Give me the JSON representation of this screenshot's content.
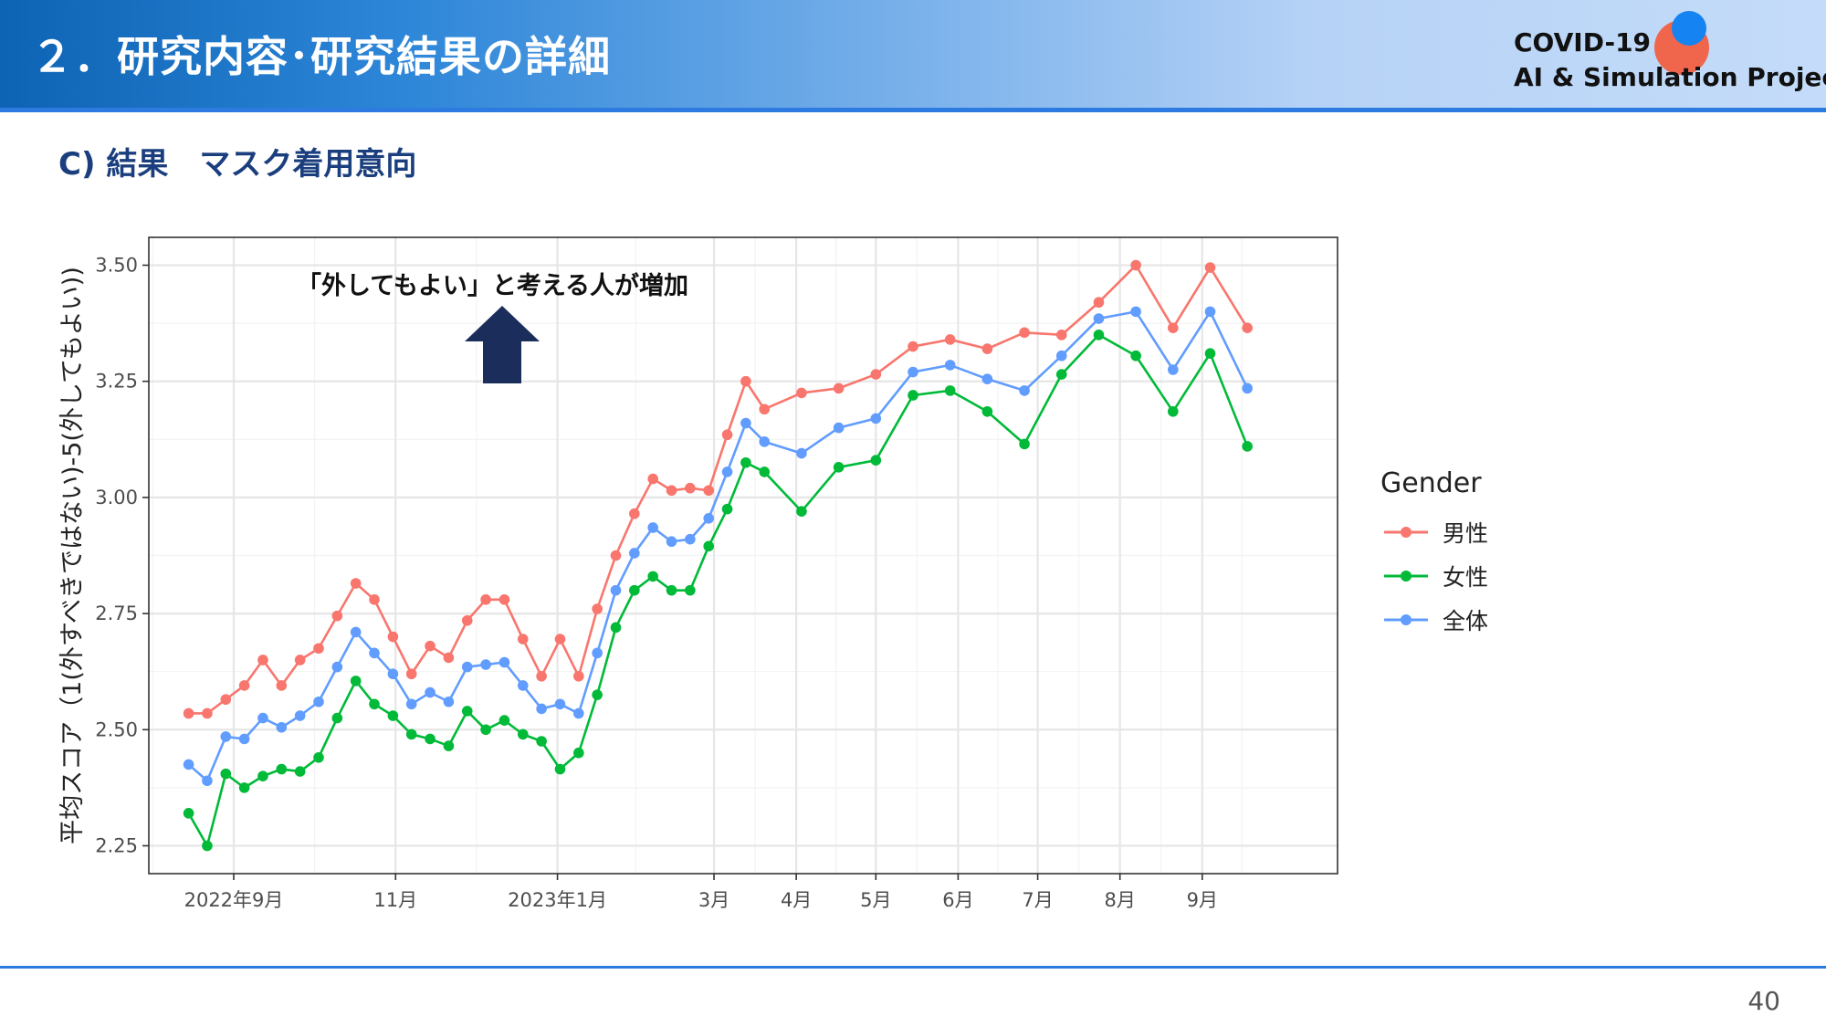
{
  "header": {
    "title": "２．研究内容･研究結果の詳細",
    "logo": {
      "line1": "COVID-19",
      "line2": "AI & Simulation Project",
      "colors": {
        "red_dot": "#f0664c",
        "blue_dot": "#1583f1"
      }
    }
  },
  "subtitle": "C) 結果　マスク着用意向",
  "page_number": "40",
  "chart_data": {
    "type": "line",
    "ylabel": "平均スコア（1(外すべきではない)-5(外してもよい))",
    "xlabel": "",
    "ylim": [
      2.19,
      3.56
    ],
    "yticks": [
      2.25,
      2.5,
      2.75,
      3.0,
      3.25,
      3.5
    ],
    "ytick_labels": [
      "2.25",
      "2.50",
      "2.75",
      "3.00",
      "3.25",
      "3.50"
    ],
    "x_unit": "weekly survey waves",
    "x_start": "2022-08-15",
    "x_step_days": 7,
    "xlim": [
      "2022-07-31",
      "2023-10-22"
    ],
    "xticks": [
      {
        "date": "2022-09-01",
        "label": "2022年9月"
      },
      {
        "date": "2022-11-01",
        "label": "11月"
      },
      {
        "date": "2023-01-01",
        "label": "2023年1月"
      },
      {
        "date": "2023-03-01",
        "label": "3月"
      },
      {
        "date": "2023-04-01",
        "label": "4月"
      },
      {
        "date": "2023-05-01",
        "label": "5月"
      },
      {
        "date": "2023-06-01",
        "label": "6月"
      },
      {
        "date": "2023-07-01",
        "label": "7月"
      },
      {
        "date": "2023-08-01",
        "label": "8月"
      },
      {
        "date": "2023-09-01",
        "label": "9月"
      }
    ],
    "grid": true,
    "legend": {
      "title": "Gender",
      "position": "right"
    },
    "series": [
      {
        "name": "男性",
        "color": "#f8766d",
        "points": [
          [
            "2022-08-15",
            2.535
          ],
          [
            "2022-08-22",
            2.535
          ],
          [
            "2022-08-29",
            2.565
          ],
          [
            "2022-09-05",
            2.595
          ],
          [
            "2022-09-12",
            2.65
          ],
          [
            "2022-09-19",
            2.595
          ],
          [
            "2022-09-26",
            2.65
          ],
          [
            "2022-10-03",
            2.675
          ],
          [
            "2022-10-10",
            2.745
          ],
          [
            "2022-10-17",
            2.815
          ],
          [
            "2022-10-24",
            2.78
          ],
          [
            "2022-10-31",
            2.7
          ],
          [
            "2022-11-07",
            2.62
          ],
          [
            "2022-11-14",
            2.68
          ],
          [
            "2022-11-21",
            2.655
          ],
          [
            "2022-11-28",
            2.735
          ],
          [
            "2022-12-05",
            2.78
          ],
          [
            "2022-12-12",
            2.78
          ],
          [
            "2022-12-19",
            2.695
          ],
          [
            "2022-12-26",
            2.615
          ],
          [
            "2023-01-02",
            2.695
          ],
          [
            "2023-01-09",
            2.615
          ],
          [
            "2023-01-16",
            2.76
          ],
          [
            "2023-01-23",
            2.875
          ],
          [
            "2023-01-30",
            2.965
          ],
          [
            "2023-02-06",
            3.04
          ],
          [
            "2023-02-13",
            3.015
          ],
          [
            "2023-02-20",
            3.02
          ],
          [
            "2023-02-27",
            3.015
          ],
          [
            "2023-03-06",
            3.135
          ],
          [
            "2023-03-13",
            3.25
          ],
          [
            "2023-03-20",
            3.19
          ],
          [
            "2023-04-03",
            3.225
          ],
          [
            "2023-04-17",
            3.235
          ],
          [
            "2023-05-01",
            3.265
          ],
          [
            "2023-05-15",
            3.325
          ],
          [
            "2023-05-29",
            3.34
          ],
          [
            "2023-06-12",
            3.32
          ],
          [
            "2023-06-26",
            3.355
          ],
          [
            "2023-07-10",
            3.35
          ],
          [
            "2023-07-24",
            3.42
          ],
          [
            "2023-08-07",
            3.5
          ],
          [
            "2023-08-21",
            3.365
          ],
          [
            "2023-09-04",
            3.495
          ],
          [
            "2023-09-18",
            3.365
          ]
        ]
      },
      {
        "name": "女性",
        "color": "#00ba38",
        "points": [
          [
            "2022-08-15",
            2.32
          ],
          [
            "2022-08-22",
            2.25
          ],
          [
            "2022-08-29",
            2.405
          ],
          [
            "2022-09-05",
            2.375
          ],
          [
            "2022-09-12",
            2.4
          ],
          [
            "2022-09-19",
            2.415
          ],
          [
            "2022-09-26",
            2.41
          ],
          [
            "2022-10-03",
            2.44
          ],
          [
            "2022-10-10",
            2.525
          ],
          [
            "2022-10-17",
            2.605
          ],
          [
            "2022-10-24",
            2.555
          ],
          [
            "2022-10-31",
            2.53
          ],
          [
            "2022-11-07",
            2.49
          ],
          [
            "2022-11-14",
            2.48
          ],
          [
            "2022-11-21",
            2.465
          ],
          [
            "2022-11-28",
            2.54
          ],
          [
            "2022-12-05",
            2.5
          ],
          [
            "2022-12-12",
            2.52
          ],
          [
            "2022-12-19",
            2.49
          ],
          [
            "2022-12-26",
            2.475
          ],
          [
            "2023-01-02",
            2.415
          ],
          [
            "2023-01-09",
            2.45
          ],
          [
            "2023-01-16",
            2.575
          ],
          [
            "2023-01-23",
            2.72
          ],
          [
            "2023-01-30",
            2.8
          ],
          [
            "2023-02-06",
            2.83
          ],
          [
            "2023-02-13",
            2.8
          ],
          [
            "2023-02-20",
            2.8
          ],
          [
            "2023-02-27",
            2.895
          ],
          [
            "2023-03-06",
            2.975
          ],
          [
            "2023-03-13",
            3.075
          ],
          [
            "2023-03-20",
            3.055
          ],
          [
            "2023-04-03",
            2.97
          ],
          [
            "2023-04-17",
            3.065
          ],
          [
            "2023-05-01",
            3.08
          ],
          [
            "2023-05-15",
            3.22
          ],
          [
            "2023-05-29",
            3.23
          ],
          [
            "2023-06-12",
            3.185
          ],
          [
            "2023-06-26",
            3.115
          ],
          [
            "2023-07-10",
            3.265
          ],
          [
            "2023-07-24",
            3.35
          ],
          [
            "2023-08-07",
            3.305
          ],
          [
            "2023-08-21",
            3.185
          ],
          [
            "2023-09-04",
            3.31
          ],
          [
            "2023-09-18",
            3.11
          ]
        ]
      },
      {
        "name": "全体",
        "color": "#619cff",
        "points": [
          [
            "2022-08-15",
            2.425
          ],
          [
            "2022-08-22",
            2.39
          ],
          [
            "2022-08-29",
            2.485
          ],
          [
            "2022-09-05",
            2.48
          ],
          [
            "2022-09-12",
            2.525
          ],
          [
            "2022-09-19",
            2.505
          ],
          [
            "2022-09-26",
            2.53
          ],
          [
            "2022-10-03",
            2.56
          ],
          [
            "2022-10-10",
            2.635
          ],
          [
            "2022-10-17",
            2.71
          ],
          [
            "2022-10-24",
            2.665
          ],
          [
            "2022-10-31",
            2.62
          ],
          [
            "2022-11-07",
            2.555
          ],
          [
            "2022-11-14",
            2.58
          ],
          [
            "2022-11-21",
            2.56
          ],
          [
            "2022-11-28",
            2.635
          ],
          [
            "2022-12-05",
            2.64
          ],
          [
            "2022-12-12",
            2.645
          ],
          [
            "2022-12-19",
            2.595
          ],
          [
            "2022-12-26",
            2.545
          ],
          [
            "2023-01-02",
            2.555
          ],
          [
            "2023-01-09",
            2.535
          ],
          [
            "2023-01-16",
            2.665
          ],
          [
            "2023-01-23",
            2.8
          ],
          [
            "2023-01-30",
            2.88
          ],
          [
            "2023-02-06",
            2.935
          ],
          [
            "2023-02-13",
            2.905
          ],
          [
            "2023-02-20",
            2.91
          ],
          [
            "2023-02-27",
            2.955
          ],
          [
            "2023-03-06",
            3.055
          ],
          [
            "2023-03-13",
            3.16
          ],
          [
            "2023-03-20",
            3.12
          ],
          [
            "2023-04-03",
            3.095
          ],
          [
            "2023-04-17",
            3.15
          ],
          [
            "2023-05-01",
            3.17
          ],
          [
            "2023-05-15",
            3.27
          ],
          [
            "2023-05-29",
            3.285
          ],
          [
            "2023-06-12",
            3.255
          ],
          [
            "2023-06-26",
            3.23
          ],
          [
            "2023-07-10",
            3.305
          ],
          [
            "2023-07-24",
            3.385
          ],
          [
            "2023-08-07",
            3.4
          ],
          [
            "2023-08-21",
            3.275
          ],
          [
            "2023-09-04",
            3.4
          ],
          [
            "2023-09-18",
            3.235
          ]
        ]
      }
    ],
    "annotation": {
      "text": "「外してもよい」と考える人が増加",
      "arrow": "up",
      "arrow_color": "#1b2e5b"
    }
  }
}
